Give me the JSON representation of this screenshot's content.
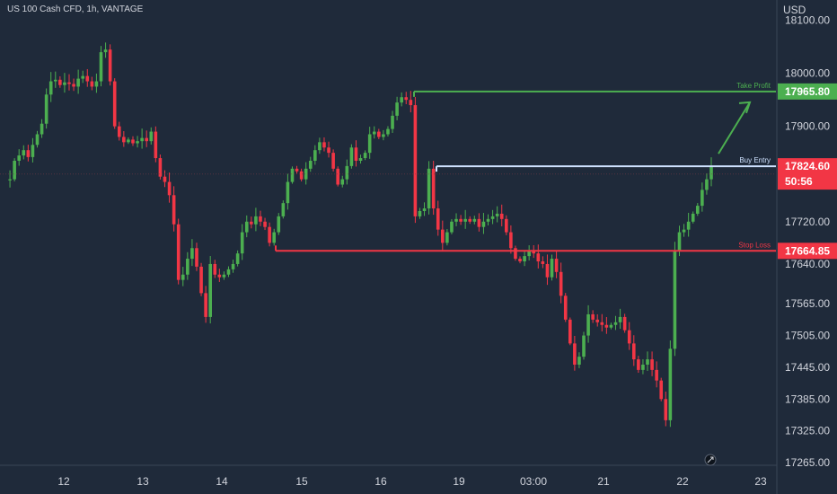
{
  "header": {
    "title": "US 100 Cash CFD, 1h, VANTAGE",
    "currency": "USD"
  },
  "colors": {
    "background": "#1f2a3a",
    "up": "#4caf50",
    "down": "#f23645",
    "take_profit": "#4caf50",
    "stop_loss": "#f23645",
    "entry": "#cfe2ff",
    "axis_text": "#d1d4dc"
  },
  "chart_data": {
    "type": "candlestick",
    "symbol": "US 100 Cash CFD",
    "interval": "1h",
    "broker": "VANTAGE",
    "x_ticks": [
      "12",
      "13",
      "14",
      "15",
      "16",
      "19",
      "03:00",
      "21",
      "22",
      "23"
    ],
    "y_ticks": [
      "18100.00",
      "18000.00",
      "17900.00",
      "17720.00",
      "17640.00",
      "17565.00",
      "17505.00",
      "17445.00",
      "17385.00",
      "17325.00",
      "17265.00"
    ],
    "ylim": [
      17260,
      18125
    ],
    "levels": [
      {
        "name": "Take Profit",
        "label": "Take Profit",
        "value": 17965.8,
        "value_label": "17965.80"
      },
      {
        "name": "Buy Entry",
        "label": "Buy Entry",
        "value": 17824.6,
        "value_label": "17824.60",
        "countdown": "50:56"
      },
      {
        "name": "Stop Loss",
        "label": "Stop Loss",
        "value": 17664.85,
        "value_label": "17664.85"
      }
    ],
    "price_path": [
      17798,
      17800,
      17835,
      17845,
      17855,
      17842,
      17865,
      17885,
      17905,
      17960,
      17985,
      17988,
      17978,
      17983,
      17980,
      17975,
      17990,
      17995,
      17985,
      17975,
      17985,
      18040,
      18045,
      17985,
      17900,
      17880,
      17870,
      17875,
      17868,
      17872,
      17878,
      17872,
      17890,
      17840,
      17805,
      17795,
      17770,
      17715,
      17610,
      17620,
      17650,
      17670,
      17635,
      17585,
      17540,
      17640,
      17620,
      17615,
      17620,
      17630,
      17640,
      17660,
      17700,
      17720,
      17715,
      17730,
      17720,
      17710,
      17680,
      17700,
      17730,
      17755,
      17795,
      17820,
      17815,
      17800,
      17820,
      17835,
      17855,
      17870,
      17860,
      17850,
      17820,
      17790,
      17800,
      17825,
      17860,
      17835,
      17840,
      17850,
      17885,
      17890,
      17880,
      17885,
      17895,
      17920,
      17945,
      17955,
      17950,
      17940,
      17730,
      17740,
      17745,
      17820,
      17745,
      17705,
      17680,
      17700,
      17720,
      17725,
      17720,
      17725,
      17720,
      17725,
      17710,
      17720,
      17725,
      17730,
      17735,
      17725,
      17700,
      17670,
      17650,
      17645,
      17655,
      17665,
      17660,
      17645,
      17640,
      17615,
      17650,
      17625,
      17580,
      17535,
      17490,
      17450,
      17465,
      17505,
      17545,
      17535,
      17530,
      17525,
      17520,
      17525,
      17530,
      17540,
      17515,
      17490,
      17460,
      17440,
      17450,
      17460,
      17440,
      17420,
      17385,
      17345,
      17480,
      17665,
      17700,
      17705,
      17720,
      17735,
      17750,
      17780,
      17800,
      17825
    ]
  }
}
